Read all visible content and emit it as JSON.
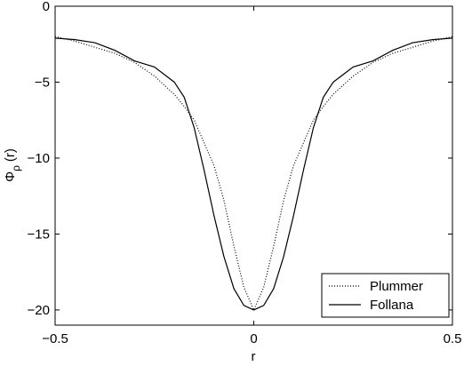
{
  "chart_data": {
    "type": "line",
    "xlabel": "r",
    "ylabel": [
      "Φ",
      "ρ",
      "(r)"
    ],
    "x": [
      -0.5,
      -0.45,
      -0.4,
      -0.35,
      -0.3,
      -0.25,
      -0.2,
      -0.175,
      -0.15,
      -0.125,
      -0.1,
      -0.075,
      -0.05,
      -0.025,
      0,
      0.025,
      0.05,
      0.075,
      0.1,
      0.125,
      0.15,
      0.175,
      0.2,
      0.25,
      0.3,
      0.35,
      0.4,
      0.45,
      0.5
    ],
    "series": [
      {
        "name": "Plummer",
        "color": "#000000",
        "style": "dotted",
        "values": [
          -2.0,
          -2.3,
          -2.7,
          -3.1,
          -3.7,
          -4.6,
          -5.8,
          -6.6,
          -7.5,
          -9.0,
          -10.5,
          -12.8,
          -15.8,
          -18.5,
          -20.0,
          -18.5,
          -15.8,
          -12.8,
          -10.5,
          -9.0,
          -7.5,
          -6.6,
          -5.8,
          -4.6,
          -3.7,
          -3.1,
          -2.7,
          -2.3,
          -2.0
        ]
      },
      {
        "name": "Follana",
        "color": "#000000",
        "style": "solid",
        "values": [
          -2.1,
          -2.2,
          -2.4,
          -2.9,
          -3.6,
          -4.0,
          -5.0,
          -6.0,
          -8.0,
          -10.8,
          -13.8,
          -16.5,
          -18.6,
          -19.7,
          -20.0,
          -19.7,
          -18.6,
          -16.5,
          -13.8,
          -10.8,
          -8.0,
          -6.0,
          -5.0,
          -4.0,
          -3.6,
          -2.9,
          -2.4,
          -2.2,
          -2.1
        ]
      }
    ],
    "xlim": [
      -0.5,
      0.5
    ],
    "xticks": [
      {
        "value": -0.5,
        "label": "−0.5"
      },
      0,
      0.5
    ],
    "ylim": [
      -21,
      0
    ],
    "yticks": [
      {
        "value": -20,
        "label": "−20"
      },
      {
        "value": -15,
        "label": "−15"
      },
      {
        "value": -10,
        "label": "−10"
      },
      {
        "value": -5,
        "label": "−5"
      },
      0
    ],
    "legend": "lower right"
  }
}
